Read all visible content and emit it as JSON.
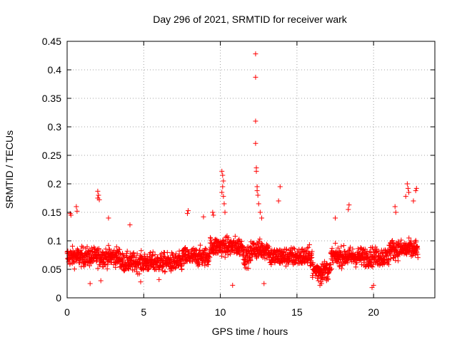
{
  "chart_data": {
    "type": "scatter",
    "title": "Day 296 of 2021, SRMTID for receiver wark",
    "xlabel": "GPS time / hours",
    "ylabel": "SRMTID / TECUs",
    "xlim": [
      0,
      24
    ],
    "ylim": [
      0,
      0.45
    ],
    "xticks": [
      0,
      5,
      10,
      15,
      20
    ],
    "xtick_labels": [
      "0",
      "5",
      "10",
      "15",
      "20"
    ],
    "yticks": [
      0,
      0.05,
      0.1,
      0.15,
      0.2,
      0.25,
      0.3,
      0.35,
      0.4,
      0.45
    ],
    "ytick_labels": [
      "0",
      "0.05",
      "0.1",
      "0.15",
      "0.2",
      "0.25",
      "0.3",
      "0.35",
      "0.4",
      "0.45"
    ],
    "grid": true,
    "marker": "+",
    "color": "#ff0000",
    "series": [
      {
        "name": "SRMTID",
        "points": [
          [
            12.3,
            0.428
          ],
          [
            12.3,
            0.387
          ],
          [
            12.3,
            0.31
          ],
          [
            12.3,
            0.271
          ],
          [
            12.35,
            0.228
          ],
          [
            12.35,
            0.222
          ],
          [
            12.4,
            0.195
          ],
          [
            12.4,
            0.188
          ],
          [
            12.45,
            0.18
          ],
          [
            12.5,
            0.165
          ],
          [
            12.6,
            0.15
          ],
          [
            12.7,
            0.14
          ],
          [
            10.1,
            0.222
          ],
          [
            10.15,
            0.215
          ],
          [
            10.2,
            0.205
          ],
          [
            10.15,
            0.195
          ],
          [
            10.1,
            0.185
          ],
          [
            10.2,
            0.178
          ],
          [
            10.25,
            0.165
          ],
          [
            10.3,
            0.15
          ],
          [
            2.0,
            0.187
          ],
          [
            2.05,
            0.18
          ],
          [
            2.0,
            0.175
          ],
          [
            2.1,
            0.172
          ],
          [
            22.2,
            0.2
          ],
          [
            22.25,
            0.192
          ],
          [
            22.3,
            0.185
          ],
          [
            22.1,
            0.178
          ],
          [
            22.8,
            0.192
          ],
          [
            22.75,
            0.188
          ],
          [
            22.6,
            0.17
          ],
          [
            13.9,
            0.195
          ],
          [
            13.8,
            0.17
          ],
          [
            7.9,
            0.153
          ],
          [
            7.85,
            0.148
          ],
          [
            9.5,
            0.15
          ],
          [
            9.55,
            0.145
          ],
          [
            18.4,
            0.163
          ],
          [
            18.35,
            0.155
          ],
          [
            21.4,
            0.16
          ],
          [
            21.45,
            0.15
          ],
          [
            0.2,
            0.148
          ],
          [
            0.25,
            0.145
          ],
          [
            0.6,
            0.16
          ],
          [
            0.65,
            0.152
          ],
          [
            2.7,
            0.14
          ],
          [
            4.1,
            0.128
          ],
          [
            8.9,
            0.142
          ],
          [
            17.5,
            0.14
          ],
          [
            16.5,
            0.022
          ],
          [
            16.6,
            0.025
          ],
          [
            16.4,
            0.03
          ],
          [
            16.55,
            0.028
          ],
          [
            19.9,
            0.018
          ],
          [
            20.0,
            0.022
          ],
          [
            1.5,
            0.025
          ],
          [
            2.2,
            0.03
          ],
          [
            10.8,
            0.022
          ],
          [
            12.85,
            0.025
          ],
          [
            4.8,
            0.028
          ],
          [
            6.0,
            0.032
          ]
        ]
      }
    ]
  }
}
